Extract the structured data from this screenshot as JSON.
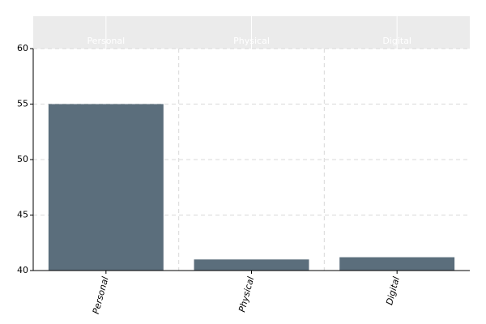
{
  "chart_data": {
    "type": "bar",
    "categories": [
      "Personal",
      "Physical",
      "Digital"
    ],
    "values": [
      55,
      41,
      41.2
    ],
    "color": "#5b6e7c",
    "ylim": [
      40,
      60
    ],
    "yticks": [
      40,
      45,
      50,
      55,
      60
    ],
    "grid": true
  }
}
